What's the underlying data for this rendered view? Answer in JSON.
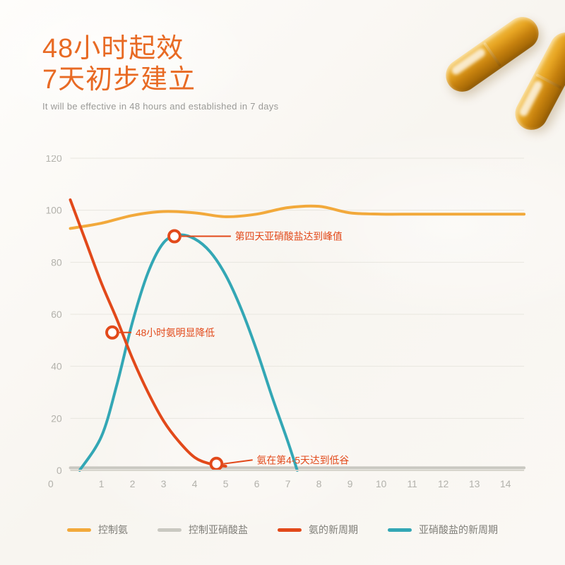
{
  "heading": {
    "line1_prefix_num": "48",
    "line1_rest": "小时起效",
    "line2_prefix_num": "7",
    "line2_rest": "天初步建立",
    "color": "#e86a24",
    "fontsize_pt": 38
  },
  "subtitle": {
    "text": "It will be effective in 48 hours and established in 7 days",
    "color": "#9a9a97"
  },
  "capsules": {
    "body_gradient_top": "#f5c24a",
    "body_gradient_bottom": "#8d5804"
  },
  "chart": {
    "type": "line",
    "xlim": [
      0,
      14.6
    ],
    "ylim": [
      0,
      120
    ],
    "xtick_step": 1,
    "xtick_max_label": 14,
    "yticks": [
      0,
      20,
      40,
      60,
      80,
      100,
      120
    ],
    "background_color": "transparent",
    "grid_color": "#e8e6df",
    "axis_color": "#d7d5cd",
    "tick_label_color": "#b2b1ab",
    "tick_fontsize": 14,
    "line_width": 4,
    "series": {
      "control_ammonia": {
        "label": "控制氨",
        "color": "#f2a93b",
        "points": [
          [
            0,
            93
          ],
          [
            1,
            95
          ],
          [
            2,
            98
          ],
          [
            3,
            99.5
          ],
          [
            4,
            99
          ],
          [
            5,
            97.5
          ],
          [
            6,
            98.5
          ],
          [
            7,
            101
          ],
          [
            8,
            101.5
          ],
          [
            9,
            99
          ],
          [
            10,
            98.5
          ],
          [
            11,
            98.5
          ],
          [
            12,
            98.5
          ],
          [
            13,
            98.5
          ],
          [
            14,
            98.5
          ],
          [
            14.6,
            98.5
          ]
        ]
      },
      "control_nitrite": {
        "label": "控制亚硝酸盐",
        "color": "#c9c8c1",
        "points": [
          [
            0,
            1
          ],
          [
            14.6,
            1
          ]
        ]
      },
      "ammonia_cycle": {
        "label": "氨的新周期",
        "color": "#e2491a",
        "points": [
          [
            0,
            104
          ],
          [
            0.5,
            88
          ],
          [
            1,
            72
          ],
          [
            1.5,
            58
          ],
          [
            2,
            43
          ],
          [
            2.5,
            30
          ],
          [
            3,
            19
          ],
          [
            3.5,
            11
          ],
          [
            4,
            5
          ],
          [
            4.5,
            2.5
          ],
          [
            5,
            1.6
          ]
        ]
      },
      "nitrite_cycle": {
        "label": "亚硝酸盐的新周期",
        "color": "#33a7b5",
        "points": [
          [
            0.3,
            0
          ],
          [
            1,
            13
          ],
          [
            1.5,
            33
          ],
          [
            2,
            57
          ],
          [
            2.5,
            76
          ],
          [
            3,
            87.5
          ],
          [
            3.5,
            90.5
          ],
          [
            4,
            89
          ],
          [
            4.5,
            84
          ],
          [
            5,
            75
          ],
          [
            5.5,
            62
          ],
          [
            6,
            46
          ],
          [
            6.5,
            28
          ],
          [
            7,
            11
          ],
          [
            7.3,
            0
          ]
        ]
      }
    },
    "markers": [
      {
        "id": "peak",
        "x": 3.35,
        "y": 90,
        "color": "#e2491a",
        "r": 8
      },
      {
        "id": "hr48",
        "x": 1.35,
        "y": 53,
        "color": "#e2491a",
        "r": 8
      },
      {
        "id": "trough",
        "x": 4.7,
        "y": 2.5,
        "color": "#e2491a",
        "r": 8
      }
    ],
    "annotations": [
      {
        "for": "peak",
        "text": "第四天亚硝酸盐达到峰值",
        "color": "#e2491a",
        "tx": 5.3,
        "ty": 90
      },
      {
        "for": "hr48",
        "text": "48小时氨明显降低",
        "color": "#e2491a",
        "tx": 2.1,
        "ty": 53
      },
      {
        "for": "trough",
        "text": "氨在第4-5天达到低谷",
        "color": "#e2491a",
        "tx": 6.0,
        "ty": 4
      }
    ]
  },
  "legend": {
    "items": [
      {
        "key": "control_ammonia",
        "label": "控制氨",
        "color": "#f2a93b"
      },
      {
        "key": "control_nitrite",
        "label": "控制亚硝酸盐",
        "color": "#c9c8c1"
      },
      {
        "key": "ammonia_cycle",
        "label": "氨的新周期",
        "color": "#e2491a"
      },
      {
        "key": "nitrite_cycle",
        "label": "亚硝酸盐的新周期",
        "color": "#33a7b5"
      }
    ],
    "text_color": "#7f7e78",
    "fontsize": 14
  }
}
